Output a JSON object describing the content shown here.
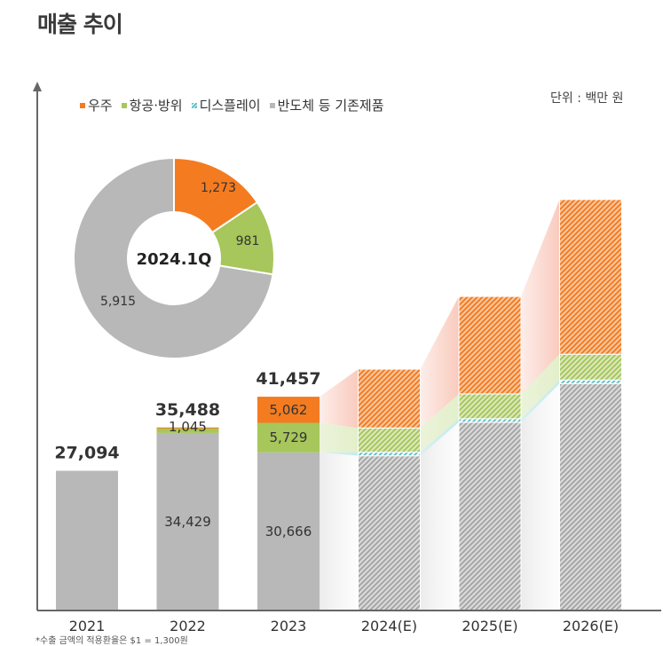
{
  "title": "매출 추이",
  "unit_label": "단위 : 백만 원",
  "footnote": "*수출 금액의 적용환율은 $1 = 1,300원",
  "colors": {
    "space": "#f47b20",
    "aero": "#a7c65b",
    "display": "#5ec3c8",
    "semi": "#b8b8b8",
    "axis": "#666666"
  },
  "legend": [
    {
      "label": "우주",
      "key": "space"
    },
    {
      "label": "항공·방위",
      "key": "aero"
    },
    {
      "label": "디스플레이",
      "key": "display"
    },
    {
      "label": "반도체 등 기존제품",
      "key": "semi"
    }
  ],
  "chart_data": [
    {
      "type": "bar",
      "stacked": true,
      "categories": [
        "2021",
        "2022",
        "2023",
        "2024(E)",
        "2025(E)",
        "2026(E)"
      ],
      "projected": [
        false,
        false,
        false,
        true,
        true,
        true
      ],
      "totals": [
        "27,094",
        "35,488",
        "41,457",
        "",
        "",
        ""
      ],
      "series": [
        {
          "name": "반도체 등 기존제품",
          "key": "semi",
          "values": [
            27094,
            34429,
            30666,
            30000,
            36500,
            44000
          ],
          "labels": [
            "",
            "34,429",
            "30,666",
            "",
            "",
            ""
          ]
        },
        {
          "name": "디스플레이",
          "key": "display",
          "values": [
            0,
            0,
            0,
            700,
            700,
            700
          ],
          "labels": [
            "",
            "",
            "",
            "",
            "",
            ""
          ]
        },
        {
          "name": "항공·방위",
          "key": "aero",
          "values": [
            0,
            1045,
            5729,
            4700,
            4800,
            5000
          ],
          "labels": [
            "",
            "1,045",
            "5,729",
            "",
            "",
            ""
          ]
        },
        {
          "name": "우주",
          "key": "space",
          "values": [
            0,
            14,
            5062,
            11400,
            18900,
            30000
          ],
          "labels": [
            "",
            "",
            "5,062",
            "",
            "",
            ""
          ]
        }
      ],
      "ylim": [
        0,
        90000
      ],
      "grid": false
    },
    {
      "type": "pie",
      "center_label": "2024.1Q",
      "slices": [
        {
          "key": "space",
          "value": 1273,
          "label": "1,273"
        },
        {
          "key": "aero",
          "value": 981,
          "label": "981"
        },
        {
          "key": "semi",
          "value": 5915,
          "label": "5,915"
        }
      ]
    }
  ]
}
